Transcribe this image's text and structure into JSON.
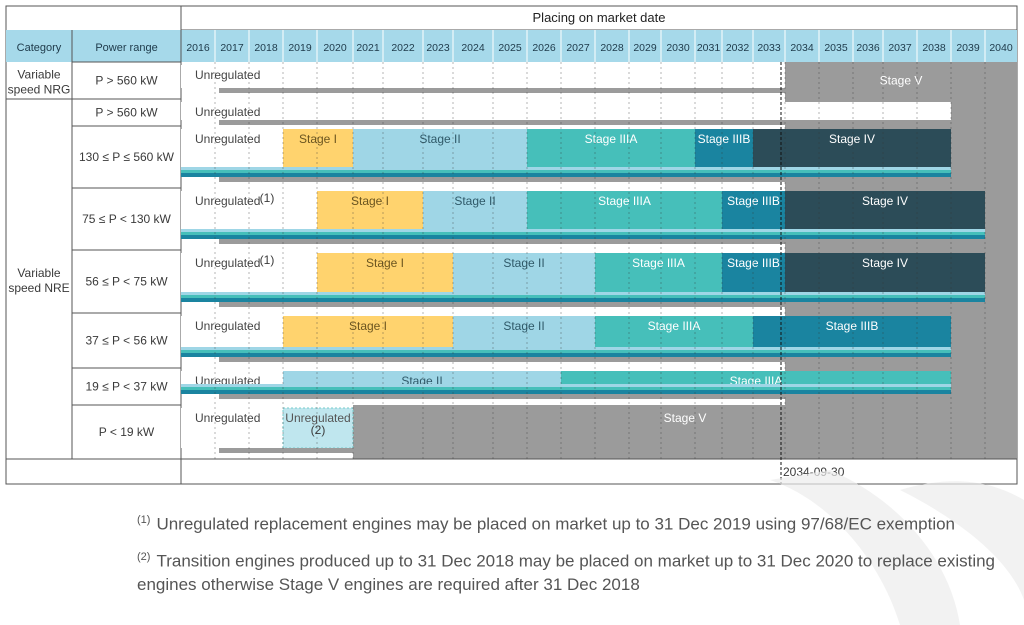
{
  "title": "Placing on market date",
  "header": {
    "category": "Category",
    "power_range": "Power range"
  },
  "years": [
    "2016",
    "2017",
    "2018",
    "2019",
    "2020",
    "2021",
    "2022",
    "2023",
    "2024",
    "2025",
    "2026",
    "2027",
    "2028",
    "2029",
    "2030",
    "2031",
    "2032",
    "2033",
    "2034",
    "2035",
    "2036",
    "2037",
    "2038",
    "2039",
    "2040"
  ],
  "categories": [
    {
      "label": [
        "Variable",
        "speed NRG"
      ],
      "rows": [
        0
      ]
    },
    {
      "label": [
        "Variable",
        "speed NRE"
      ],
      "rows": [
        1,
        2,
        3,
        4,
        5,
        6,
        7
      ]
    }
  ],
  "colors": {
    "header_bg": "#a6d9ea",
    "unregulated": "#ffffff",
    "stage_I": "#ffd36e",
    "stage_II": "#9fd6e6",
    "stage_IIIA": "#46bfba",
    "stage_IIIB": "#1a84a0",
    "stage_IV": "#2c4c58",
    "stage_V": "#9b9b9b",
    "transition": "#bfe6ee"
  },
  "rows": [
    {
      "power": "P > 560 kW",
      "segments": [
        {
          "label": "Unregulated",
          "stage": "unregulated",
          "start": 2016,
          "end": 2034
        },
        {
          "label": "Stage V",
          "stage": "stage_V",
          "start": 2034,
          "end": 2041
        }
      ]
    },
    {
      "power": "P > 560 kW",
      "segments": [
        {
          "label": "Unregulated",
          "stage": "unregulated",
          "start": 2016,
          "end": 2039
        }
      ]
    },
    {
      "power": "130 ≤ P ≤ 560 kW",
      "segments": [
        {
          "label": "Unregulated",
          "stage": "unregulated",
          "start": 2016,
          "end": 2019
        },
        {
          "label": "Stage I",
          "stage": "stage_I",
          "start": 2019,
          "end": 2021
        },
        {
          "label": "Stage II",
          "stage": "stage_II",
          "start": 2021,
          "end": 2026
        },
        {
          "label": "Stage IIIA",
          "stage": "stage_IIIA",
          "start": 2026,
          "end": 2031
        },
        {
          "label": "Stage IIIB",
          "stage": "stage_IIIB",
          "start": 2031,
          "end": 2033
        },
        {
          "label": "Stage IV",
          "stage": "stage_IV",
          "start": 2033,
          "end": 2039
        }
      ]
    },
    {
      "power": "75 ≤ P < 130 kW",
      "segments": [
        {
          "label": "Unregulated",
          "stage": "unregulated",
          "start": 2016,
          "end": 2020
        },
        {
          "label": "Stage I",
          "stage": "stage_I",
          "start": 2020,
          "end": 2023
        },
        {
          "label": "Stage II",
          "stage": "stage_II",
          "start": 2023,
          "end": 2026
        },
        {
          "label": "Stage IIIA",
          "stage": "stage_IIIA",
          "start": 2026,
          "end": 2032
        },
        {
          "label": "Stage IIIB",
          "stage": "stage_IIIB",
          "start": 2032,
          "end": 2034
        },
        {
          "label": "Stage IV",
          "stage": "stage_IV",
          "start": 2034,
          "end": 2040
        }
      ]
    },
    {
      "power": "56 ≤ P < 75 kW",
      "segments": [
        {
          "label": "Unregulated",
          "stage": "unregulated",
          "start": 2016,
          "end": 2020
        },
        {
          "label": "Stage I",
          "stage": "stage_I",
          "start": 2020,
          "end": 2024
        },
        {
          "label": "Stage II",
          "stage": "stage_II",
          "start": 2024,
          "end": 2028
        },
        {
          "label": "Stage IIIA",
          "stage": "stage_IIIA",
          "start": 2028,
          "end": 2032
        },
        {
          "label": "Stage IIIB",
          "stage": "stage_IIIB",
          "start": 2032,
          "end": 2034
        },
        {
          "label": "Stage IV",
          "stage": "stage_IV",
          "start": 2034,
          "end": 2040
        }
      ]
    },
    {
      "power": "37 ≤ P < 56 kW",
      "segments": [
        {
          "label": "Unregulated",
          "stage": "unregulated",
          "start": 2016,
          "end": 2019
        },
        {
          "label": "Stage I",
          "stage": "stage_I",
          "start": 2019,
          "end": 2024
        },
        {
          "label": "Stage II",
          "stage": "stage_II",
          "start": 2024,
          "end": 2028
        },
        {
          "label": "Stage IIIA",
          "stage": "stage_IIIA",
          "start": 2028,
          "end": 2033
        },
        {
          "label": "Stage IIIB",
          "stage": "stage_IIIB",
          "start": 2033,
          "end": 2039
        }
      ]
    },
    {
      "power": "19 ≤ P < 37 kW",
      "segments": [
        {
          "label": "Unregulated",
          "stage": "unregulated",
          "start": 2016,
          "end": 2019
        },
        {
          "label": "Stage II",
          "stage": "stage_II",
          "start": 2019,
          "end": 2027
        },
        {
          "label": "Stage IIIA",
          "stage": "stage_IIIA",
          "start": 2027,
          "end": 2039
        }
      ]
    },
    {
      "power": "P < 19 kW",
      "segments": [
        {
          "label": "Unregulated",
          "stage": "unregulated",
          "start": 2016,
          "end": 2019
        },
        {
          "label": "Unregulated",
          "note": "(2)",
          "stage": "transition",
          "start": 2019,
          "end": 2021
        },
        {
          "label": "Stage V",
          "stage": "stage_V",
          "start": 2021,
          "end": 2041
        }
      ]
    }
  ],
  "row3_note": "(1)",
  "row4_note": "(1)",
  "deadline_label": "2034-09-30",
  "footnotes": [
    {
      "mark": "(1)",
      "text": "Unregulated replacement engines may be placed on market up to 31 Dec 2019 using 97/68/EC exemption"
    },
    {
      "mark": "(2)",
      "text": "Transition engines produced up to 31 Dec 2018 may be placed on market up to 31 Dec 2020 to replace existing engines otherwise Stage V engines are required after 31 Dec 2018"
    }
  ]
}
